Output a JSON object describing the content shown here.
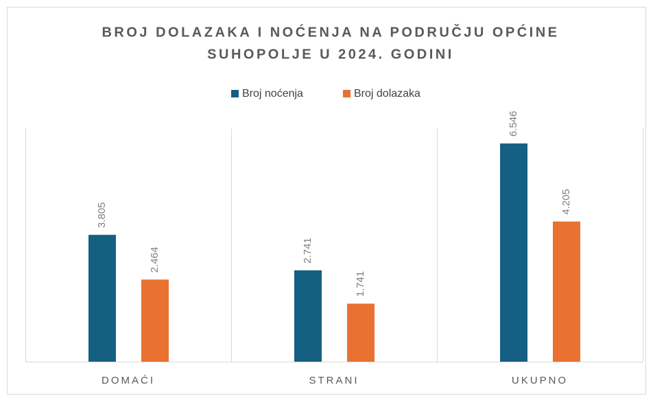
{
  "chart_data": {
    "type": "bar",
    "title": [
      "BROJ DOLAZAKA I NOĆENJA NA PODRUČJU OPĆINE",
      "SUHOPOLJE U 2024. GODINI"
    ],
    "categories": [
      "DOMAĆI",
      "STRANI",
      "UKUPNO"
    ],
    "series": [
      {
        "name": "Broj noćenja",
        "color": "#156082",
        "values": [
          3805,
          2741,
          6546
        ],
        "value_labels": [
          "3.805",
          "2.741",
          "6.546"
        ]
      },
      {
        "name": "Broj dolazaka",
        "color": "#e97132",
        "values": [
          2464,
          1741,
          4205
        ],
        "value_labels": [
          "2.464",
          "1.741",
          "4.205"
        ]
      }
    ],
    "ylim": [
      0,
      7000
    ],
    "legend": "top"
  }
}
